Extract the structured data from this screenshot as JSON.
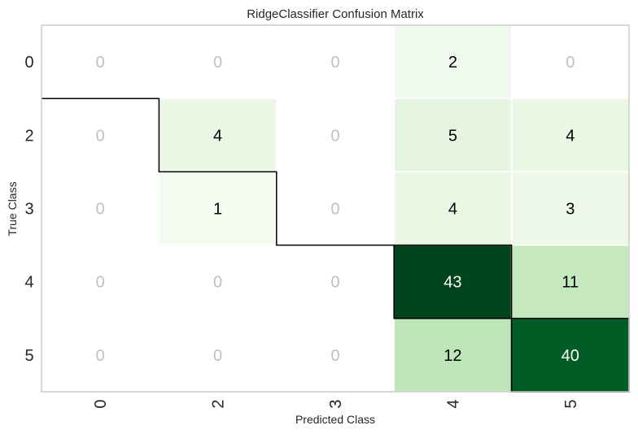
{
  "chart_data": {
    "type": "heatmap",
    "title": "RidgeClassifier Confusion Matrix",
    "xlabel": "Predicted Class",
    "ylabel": "True Class",
    "x_categories": [
      "0",
      "2",
      "3",
      "4",
      "5"
    ],
    "y_categories": [
      "0",
      "2",
      "3",
      "4",
      "5"
    ],
    "matrix": [
      [
        0,
        0,
        0,
        2,
        0
      ],
      [
        0,
        4,
        0,
        5,
        4
      ],
      [
        0,
        1,
        0,
        4,
        3
      ],
      [
        0,
        0,
        0,
        43,
        11
      ],
      [
        0,
        0,
        0,
        12,
        40
      ]
    ],
    "colormap": "Greens",
    "zero_text_color": "#c0c0c0",
    "dark_text_color": "#000000",
    "light_text_color": "#ffffff",
    "zero_cell_color": "#ffffff",
    "frame_color": "#cccccc",
    "diagonal_outline_color": "#000000"
  }
}
